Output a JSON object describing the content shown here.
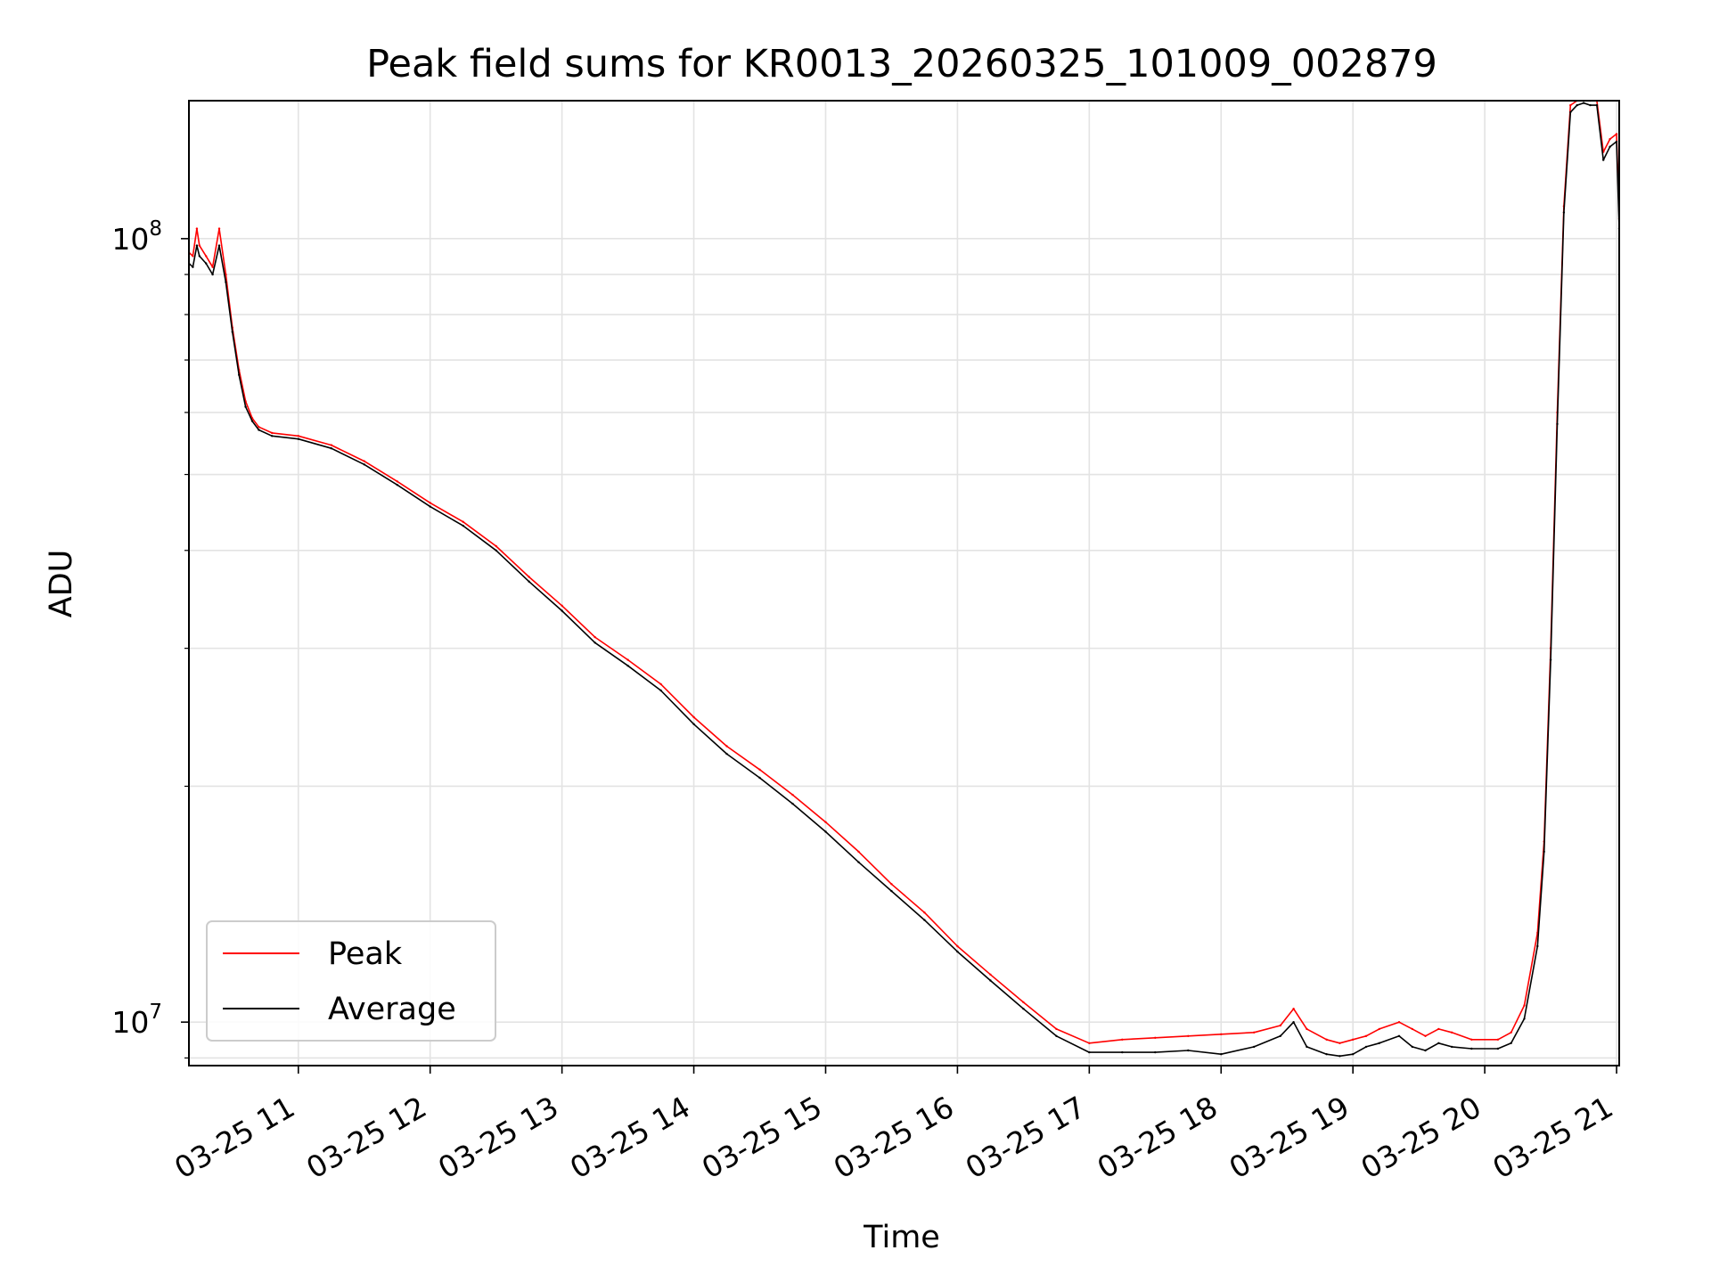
{
  "chart_data": {
    "type": "line",
    "title": "Peak field sums for KR0013_20260325_101009_002879",
    "xlabel": "Time",
    "ylabel": "ADU",
    "yscale": "log",
    "xlim": [
      10.17,
      21.02
    ],
    "ylim": [
      8800000,
      150000000
    ],
    "x_ticks": [
      {
        "value": 11,
        "label": "03-25 11"
      },
      {
        "value": 12,
        "label": "03-25 12"
      },
      {
        "value": 13,
        "label": "03-25 13"
      },
      {
        "value": 14,
        "label": "03-25 14"
      },
      {
        "value": 15,
        "label": "03-25 15"
      },
      {
        "value": 16,
        "label": "03-25 16"
      },
      {
        "value": 17,
        "label": "03-25 17"
      },
      {
        "value": 18,
        "label": "03-25 18"
      },
      {
        "value": 19,
        "label": "03-25 19"
      },
      {
        "value": 20,
        "label": "03-25 20"
      },
      {
        "value": 21,
        "label": "03-25 21"
      }
    ],
    "y_major_ticks": [
      {
        "value": 10000000,
        "base": "10",
        "exp": "7"
      },
      {
        "value": 100000000,
        "base": "10",
        "exp": "8"
      }
    ],
    "grid": true,
    "legend_position": "lower-left",
    "series": [
      {
        "name": "Peak",
        "color": "#ff0000",
        "x": [
          10.17,
          10.2,
          10.23,
          10.25,
          10.3,
          10.35,
          10.4,
          10.45,
          10.5,
          10.55,
          10.6,
          10.65,
          10.7,
          10.8,
          11.0,
          11.25,
          11.5,
          11.75,
          12.0,
          12.25,
          12.5,
          12.75,
          13.0,
          13.25,
          13.5,
          13.75,
          14.0,
          14.25,
          14.5,
          14.75,
          15.0,
          15.25,
          15.5,
          15.75,
          16.0,
          16.25,
          16.5,
          16.75,
          17.0,
          17.25,
          17.5,
          17.75,
          18.0,
          18.25,
          18.45,
          18.55,
          18.65,
          18.8,
          18.9,
          19.0,
          19.1,
          19.2,
          19.35,
          19.45,
          19.55,
          19.65,
          19.75,
          19.9,
          20.1,
          20.2,
          20.3,
          20.4,
          20.45,
          20.5,
          20.55,
          20.6,
          20.65,
          20.7,
          20.75,
          20.8,
          20.85,
          20.9,
          20.95,
          21.0,
          21.02
        ],
        "values": [
          96000000,
          95000000,
          103000000,
          98000000,
          95000000,
          92000000,
          103000000,
          90000000,
          77000000,
          68000000,
          62000000,
          59000000,
          57500000,
          56500000,
          56000000,
          54500000,
          52000000,
          49000000,
          46000000,
          43500000,
          40500000,
          37000000,
          34000000,
          31000000,
          29000000,
          27000000,
          24500000,
          22500000,
          21000000,
          19500000,
          18000000,
          16500000,
          15000000,
          13800000,
          12500000,
          11500000,
          10600000,
          9800000,
          9400000,
          9500000,
          9550000,
          9600000,
          9650000,
          9700000,
          9900000,
          10400000,
          9800000,
          9500000,
          9400000,
          9500000,
          9600000,
          9800000,
          10000000,
          9800000,
          9600000,
          9800000,
          9700000,
          9500000,
          9500000,
          9700000,
          10500000,
          13000000,
          17000000,
          30000000,
          60000000,
          110000000,
          148000000,
          150000000,
          151000000,
          150000000,
          150000000,
          129000000,
          134000000,
          136000000,
          106000000
        ]
      },
      {
        "name": "Average",
        "color": "#000000",
        "x": [
          10.17,
          10.2,
          10.23,
          10.25,
          10.3,
          10.35,
          10.4,
          10.45,
          10.5,
          10.55,
          10.6,
          10.65,
          10.7,
          10.8,
          11.0,
          11.25,
          11.5,
          11.75,
          12.0,
          12.25,
          12.5,
          12.75,
          13.0,
          13.25,
          13.5,
          13.75,
          14.0,
          14.25,
          14.5,
          14.75,
          15.0,
          15.25,
          15.5,
          15.75,
          16.0,
          16.25,
          16.5,
          16.75,
          17.0,
          17.25,
          17.5,
          17.75,
          18.0,
          18.25,
          18.45,
          18.55,
          18.65,
          18.8,
          18.9,
          19.0,
          19.1,
          19.2,
          19.35,
          19.45,
          19.55,
          19.65,
          19.75,
          19.9,
          20.1,
          20.2,
          20.3,
          20.4,
          20.45,
          20.5,
          20.55,
          20.6,
          20.65,
          20.7,
          20.75,
          20.8,
          20.85,
          20.9,
          20.95,
          21.0,
          21.02
        ],
        "values": [
          93000000,
          92000000,
          98000000,
          95000000,
          93000000,
          90000000,
          98000000,
          88000000,
          76000000,
          67000000,
          61000000,
          58500000,
          57000000,
          56000000,
          55500000,
          54000000,
          51500000,
          48500000,
          45500000,
          43000000,
          40000000,
          36500000,
          33500000,
          30500000,
          28500000,
          26500000,
          24000000,
          22000000,
          20500000,
          19000000,
          17500000,
          16000000,
          14700000,
          13500000,
          12300000,
          11300000,
          10400000,
          9600000,
          9150000,
          9150000,
          9150000,
          9200000,
          9100000,
          9300000,
          9600000,
          10000000,
          9300000,
          9100000,
          9050000,
          9100000,
          9300000,
          9400000,
          9600000,
          9300000,
          9200000,
          9400000,
          9300000,
          9250000,
          9250000,
          9400000,
          10100000,
          12500000,
          16500000,
          29000000,
          58000000,
          108000000,
          145000000,
          148000000,
          149000000,
          148000000,
          148000000,
          126000000,
          131000000,
          133000000,
          103000000
        ]
      }
    ]
  }
}
